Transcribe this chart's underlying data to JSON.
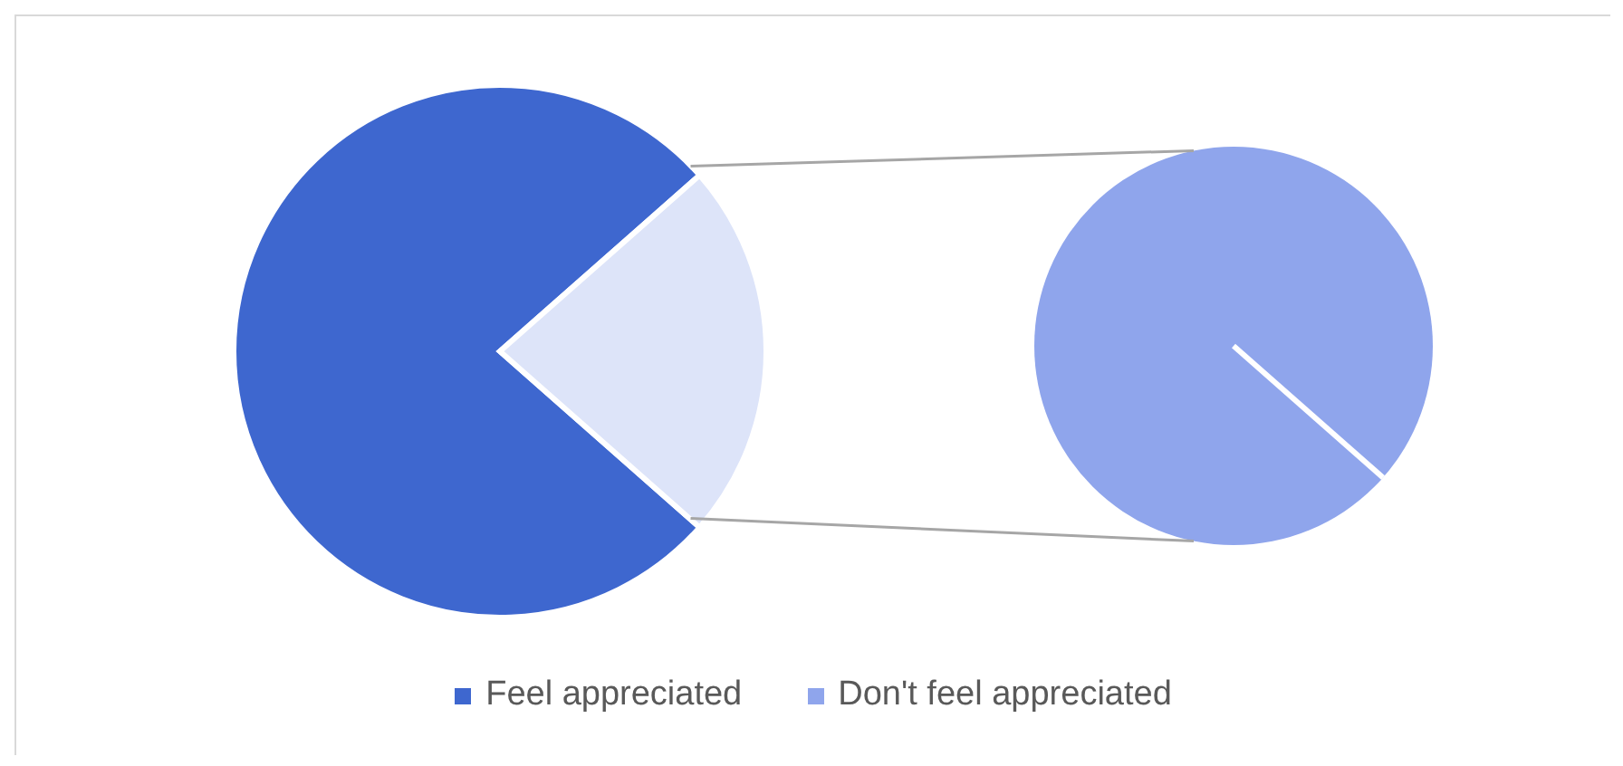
{
  "chart_data": {
    "type": "pie",
    "categories": [
      "Feel appreciated",
      "Don't feel appreciated"
    ],
    "values": [
      77,
      23
    ],
    "colors": [
      "#3e67cf",
      "#8fa5ec"
    ],
    "legend": "bottom"
  }
}
